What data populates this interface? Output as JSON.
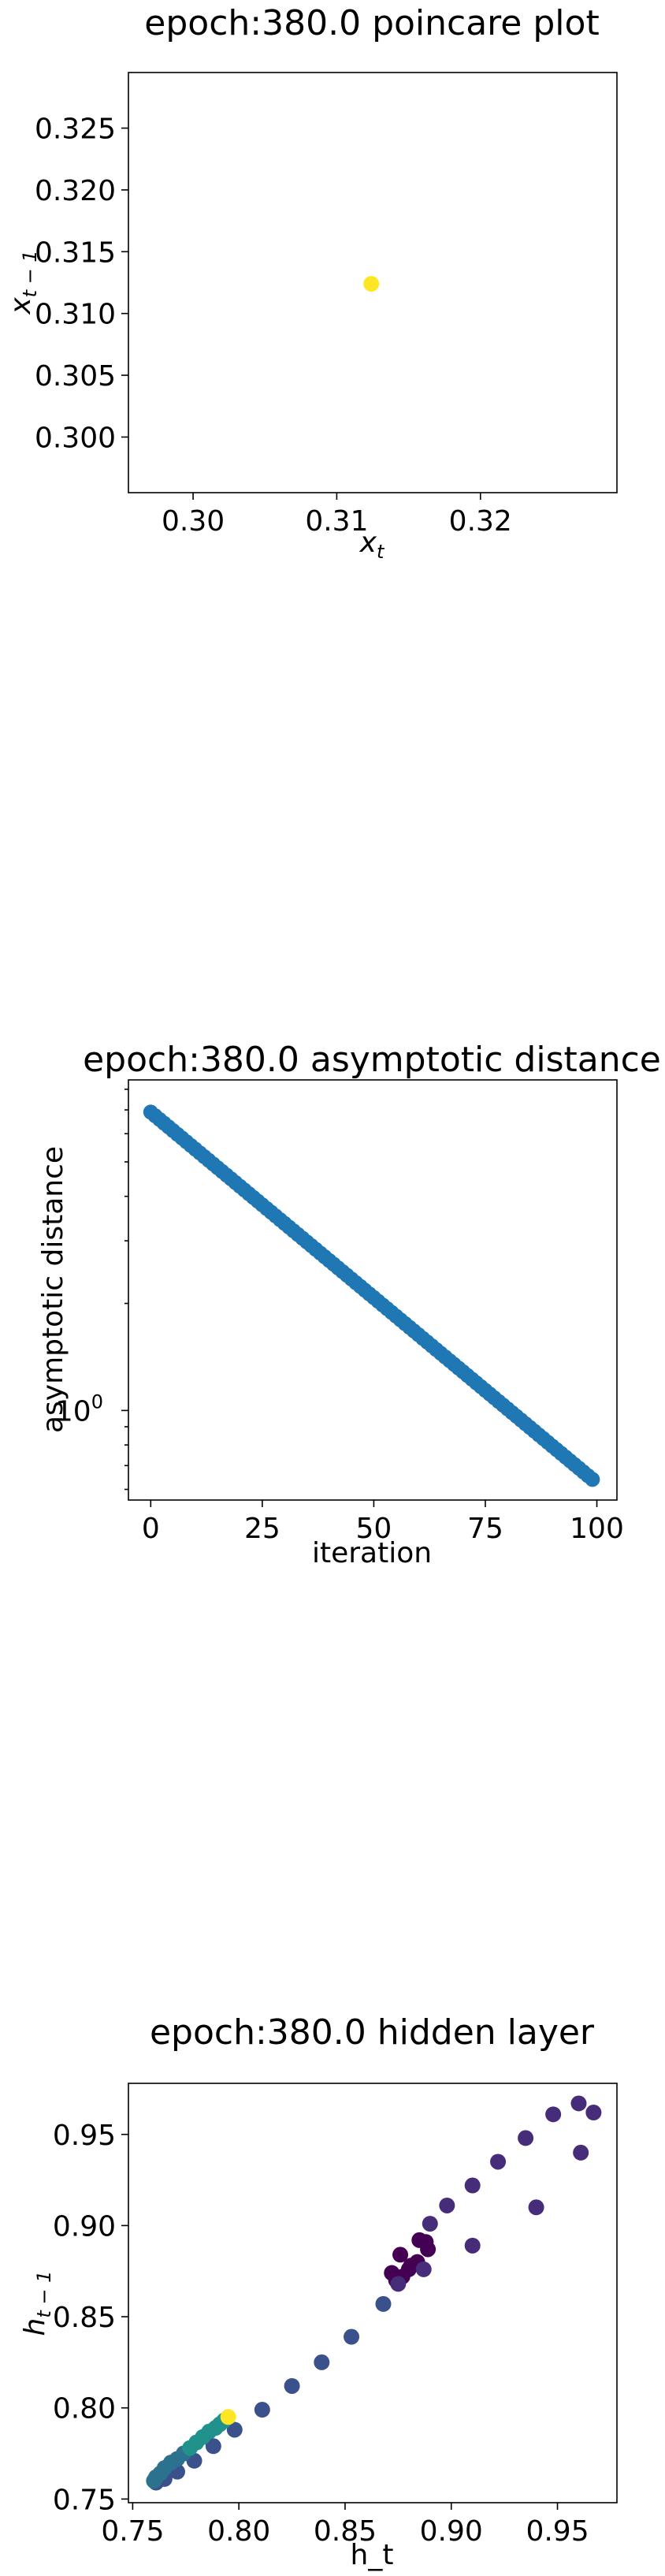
{
  "chart_data": [
    {
      "type": "scatter",
      "title": "epoch:380.0 poincare plot",
      "xlabel": "x_t",
      "ylabel": "x_{t-1}",
      "xlim": [
        0.2955,
        0.3295
      ],
      "ylim": [
        0.2955,
        0.3295
      ],
      "xticks": [
        {
          "v": 0.3,
          "label": "0.30"
        },
        {
          "v": 0.31,
          "label": "0.31"
        },
        {
          "v": 0.32,
          "label": "0.32"
        }
      ],
      "yticks": [
        {
          "v": 0.3,
          "label": "0.300"
        },
        {
          "v": 0.305,
          "label": "0.305"
        },
        {
          "v": 0.31,
          "label": "0.310"
        },
        {
          "v": 0.315,
          "label": "0.315"
        },
        {
          "v": 0.32,
          "label": "0.320"
        },
        {
          "v": 0.325,
          "label": "0.325"
        }
      ],
      "points": [
        {
          "x": 0.3124,
          "y": 0.3124,
          "color": "#fde725"
        }
      ]
    },
    {
      "type": "scatter",
      "title": "epoch:380.0 asymptotic distance",
      "xlabel": "iteration",
      "ylabel": "asymptotic distance",
      "yscale": "log",
      "xlim": [
        -5,
        104.5
      ],
      "ylim": [
        0.56,
        8.5
      ],
      "xticks": [
        {
          "v": 0,
          "label": "0"
        },
        {
          "v": 25,
          "label": "25"
        },
        {
          "v": 50,
          "label": "50"
        },
        {
          "v": 75,
          "label": "75"
        },
        {
          "v": 100,
          "label": "100"
        }
      ],
      "yticks": [
        {
          "v": 1,
          "label": "10^0"
        }
      ],
      "y_start": 6.9,
      "y_end": 0.64,
      "n_points": 100,
      "color": "#1f77b4"
    },
    {
      "type": "scatter",
      "title": "epoch:380.0 hidden layer",
      "xlabel": "h_t",
      "ylabel": "h_{t-1}",
      "xlim": [
        0.748,
        0.978
      ],
      "ylim": [
        0.748,
        0.978
      ],
      "xticks": [
        {
          "v": 0.75,
          "label": "0.75"
        },
        {
          "v": 0.8,
          "label": "0.80"
        },
        {
          "v": 0.85,
          "label": "0.85"
        },
        {
          "v": 0.9,
          "label": "0.90"
        },
        {
          "v": 0.95,
          "label": "0.95"
        }
      ],
      "yticks": [
        {
          "v": 0.75,
          "label": "0.75"
        },
        {
          "v": 0.8,
          "label": "0.80"
        },
        {
          "v": 0.85,
          "label": "0.85"
        },
        {
          "v": 0.9,
          "label": "0.90"
        },
        {
          "v": 0.95,
          "label": "0.95"
        }
      ],
      "points": [
        {
          "x": 0.877,
          "y": 0.872,
          "color": "#440154"
        },
        {
          "x": 0.885,
          "y": 0.892,
          "color": "#440154"
        },
        {
          "x": 0.872,
          "y": 0.874,
          "color": "#440154"
        },
        {
          "x": 0.881,
          "y": 0.878,
          "color": "#440154"
        },
        {
          "x": 0.876,
          "y": 0.884,
          "color": "#440154"
        },
        {
          "x": 0.884,
          "y": 0.88,
          "color": "#440154"
        },
        {
          "x": 0.888,
          "y": 0.891,
          "color": "#440154"
        },
        {
          "x": 0.874,
          "y": 0.87,
          "color": "#440154"
        },
        {
          "x": 0.889,
          "y": 0.887,
          "color": "#440154"
        },
        {
          "x": 0.88,
          "y": 0.876,
          "color": "#440154"
        },
        {
          "x": 0.887,
          "y": 0.876,
          "color": "#472c7a"
        },
        {
          "x": 0.875,
          "y": 0.868,
          "color": "#472c7a"
        },
        {
          "x": 0.89,
          "y": 0.901,
          "color": "#472c7a"
        },
        {
          "x": 0.898,
          "y": 0.911,
          "color": "#472c7a"
        },
        {
          "x": 0.91,
          "y": 0.922,
          "color": "#472c7a"
        },
        {
          "x": 0.922,
          "y": 0.935,
          "color": "#472c7a"
        },
        {
          "x": 0.935,
          "y": 0.948,
          "color": "#472c7a"
        },
        {
          "x": 0.948,
          "y": 0.961,
          "color": "#472c7a"
        },
        {
          "x": 0.96,
          "y": 0.967,
          "color": "#472c7a"
        },
        {
          "x": 0.967,
          "y": 0.962,
          "color": "#472c7a"
        },
        {
          "x": 0.961,
          "y": 0.94,
          "color": "#472c7a"
        },
        {
          "x": 0.94,
          "y": 0.91,
          "color": "#472c7a"
        },
        {
          "x": 0.91,
          "y": 0.889,
          "color": "#472c7a"
        },
        {
          "x": 0.868,
          "y": 0.857,
          "color": "#3b518b"
        },
        {
          "x": 0.853,
          "y": 0.839,
          "color": "#3b518b"
        },
        {
          "x": 0.839,
          "y": 0.825,
          "color": "#3b518b"
        },
        {
          "x": 0.825,
          "y": 0.812,
          "color": "#3b518b"
        },
        {
          "x": 0.811,
          "y": 0.799,
          "color": "#3b518b"
        },
        {
          "x": 0.798,
          "y": 0.788,
          "color": "#3b518b"
        },
        {
          "x": 0.788,
          "y": 0.779,
          "color": "#3b518b"
        },
        {
          "x": 0.779,
          "y": 0.771,
          "color": "#3b518b"
        },
        {
          "x": 0.771,
          "y": 0.765,
          "color": "#3b518b"
        },
        {
          "x": 0.765,
          "y": 0.761,
          "color": "#3b518b"
        },
        {
          "x": 0.761,
          "y": 0.759,
          "color": "#3b518b"
        },
        {
          "x": 0.76,
          "y": 0.76,
          "color": "#2c728e"
        },
        {
          "x": 0.761,
          "y": 0.762,
          "color": "#2c728e"
        },
        {
          "x": 0.763,
          "y": 0.764,
          "color": "#2c728e"
        },
        {
          "x": 0.765,
          "y": 0.767,
          "color": "#2c728e"
        },
        {
          "x": 0.768,
          "y": 0.77,
          "color": "#2c728e"
        },
        {
          "x": 0.771,
          "y": 0.772,
          "color": "#2c728e"
        },
        {
          "x": 0.774,
          "y": 0.775,
          "color": "#2c728e"
        },
        {
          "x": 0.777,
          "y": 0.778,
          "color": "#21918c"
        },
        {
          "x": 0.78,
          "y": 0.781,
          "color": "#21918c"
        },
        {
          "x": 0.783,
          "y": 0.784,
          "color": "#21918c"
        },
        {
          "x": 0.786,
          "y": 0.787,
          "color": "#21918c"
        },
        {
          "x": 0.789,
          "y": 0.789,
          "color": "#21918c"
        },
        {
          "x": 0.791,
          "y": 0.791,
          "color": "#21918c"
        },
        {
          "x": 0.793,
          "y": 0.793,
          "color": "#21918c"
        },
        {
          "x": 0.795,
          "y": 0.795,
          "color": "#fde725"
        }
      ]
    }
  ]
}
